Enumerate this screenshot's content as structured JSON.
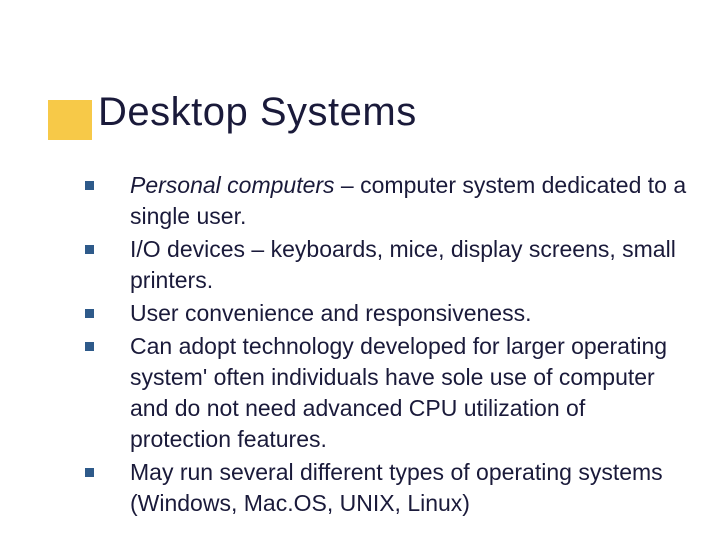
{
  "title": "Desktop Systems",
  "accent_color": "#f7c948",
  "bullet_color": "#2e5a8a",
  "text_color": "#1a1a3a",
  "background_color": "#ffffff",
  "title_fontsize": 40,
  "body_fontsize": 23,
  "bullets": [
    {
      "italic_lead": "Personal computers",
      "rest": " – computer system dedicated to a single user."
    },
    {
      "italic_lead": "",
      "rest": "I/O devices – keyboards, mice, display screens, small printers."
    },
    {
      "italic_lead": "",
      "rest": "User convenience and responsiveness."
    },
    {
      "italic_lead": "",
      "rest": "Can adopt technology developed for larger operating system' often individuals have sole use of computer and do not need advanced CPU utilization of protection features."
    },
    {
      "italic_lead": "",
      "rest": "May run several different types of operating systems (Windows, Mac.OS, UNIX, Linux)"
    }
  ]
}
